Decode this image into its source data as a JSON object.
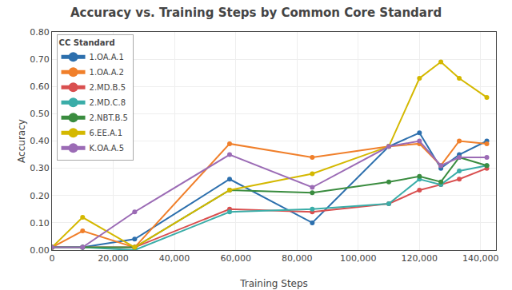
{
  "chart_data": {
    "type": "line",
    "title": "Accuracy vs. Training Steps by Common Core Standard",
    "x_label": "Training Steps",
    "y_label": "Accuracy",
    "xlim": [
      0,
      145000
    ],
    "ylim": [
      0.0,
      0.8
    ],
    "xticks": [
      0,
      {
        "value": 20000,
        "label": "20,000"
      },
      {
        "value": 40000,
        "label": "40,000"
      },
      {
        "value": 60000,
        "label": "60,000"
      },
      {
        "value": 80000,
        "label": "80,000"
      },
      {
        "value": 100000,
        "label": "100,000"
      },
      {
        "value": 120000,
        "label": "120,000"
      },
      {
        "value": 140000,
        "label": "140,000"
      }
    ],
    "yticks": [
      {
        "value": 0.0,
        "label": "0.00"
      },
      {
        "value": 0.1,
        "label": "0.10"
      },
      {
        "value": 0.2,
        "label": "0.20"
      },
      {
        "value": 0.3,
        "label": "0.30"
      },
      {
        "value": 0.4,
        "label": "0.40"
      },
      {
        "value": 0.5,
        "label": "0.50"
      },
      {
        "value": 0.6,
        "label": "0.60"
      },
      {
        "value": 0.7,
        "label": "0.70"
      },
      {
        "value": 0.8,
        "label": "0.80"
      }
    ],
    "grid": true,
    "legend": "upper left",
    "legend_title": "CC Standard",
    "marker": "circle",
    "x": [
      0,
      10000,
      27000,
      58000,
      85000,
      110000,
      120000,
      127000,
      133000,
      142000
    ],
    "series": [
      {
        "name": "1.OA.A.1",
        "color": "#2c6fad",
        "values": [
          0.01,
          0.01,
          0.04,
          0.26,
          0.1,
          0.38,
          0.43,
          0.3,
          0.35,
          0.4
        ]
      },
      {
        "name": "1.OA.A.2",
        "color": "#f07f2a",
        "values": [
          0.01,
          0.07,
          0.01,
          0.39,
          0.34,
          0.38,
          0.39,
          0.31,
          0.4,
          0.39
        ]
      },
      {
        "name": "2.MD.B.5",
        "color": "#d94f4f",
        "values": [
          0.01,
          0.01,
          0.01,
          0.15,
          0.14,
          0.17,
          0.22,
          0.24,
          0.26,
          0.3
        ]
      },
      {
        "name": "2.MD.C.8",
        "color": "#3aada8",
        "values": [
          0.01,
          0.01,
          0.0,
          0.14,
          0.15,
          0.17,
          0.26,
          0.24,
          0.29,
          0.31
        ]
      },
      {
        "name": "2.NBT.B.5",
        "color": "#3a8c3f",
        "values": [
          0.01,
          0.01,
          0.01,
          0.22,
          0.21,
          0.25,
          0.27,
          0.25,
          0.34,
          0.31
        ]
      },
      {
        "name": "6.EE.A.1",
        "color": "#d4b800",
        "values": [
          0.01,
          0.12,
          0.01,
          0.22,
          0.28,
          0.38,
          0.63,
          0.69,
          0.63,
          0.56
        ]
      },
      {
        "name": "K.OA.A.5",
        "color": "#9b6bb5",
        "values": [
          0.01,
          0.01,
          0.14,
          0.35,
          0.23,
          0.38,
          0.4,
          0.31,
          0.34,
          0.34
        ]
      }
    ]
  }
}
